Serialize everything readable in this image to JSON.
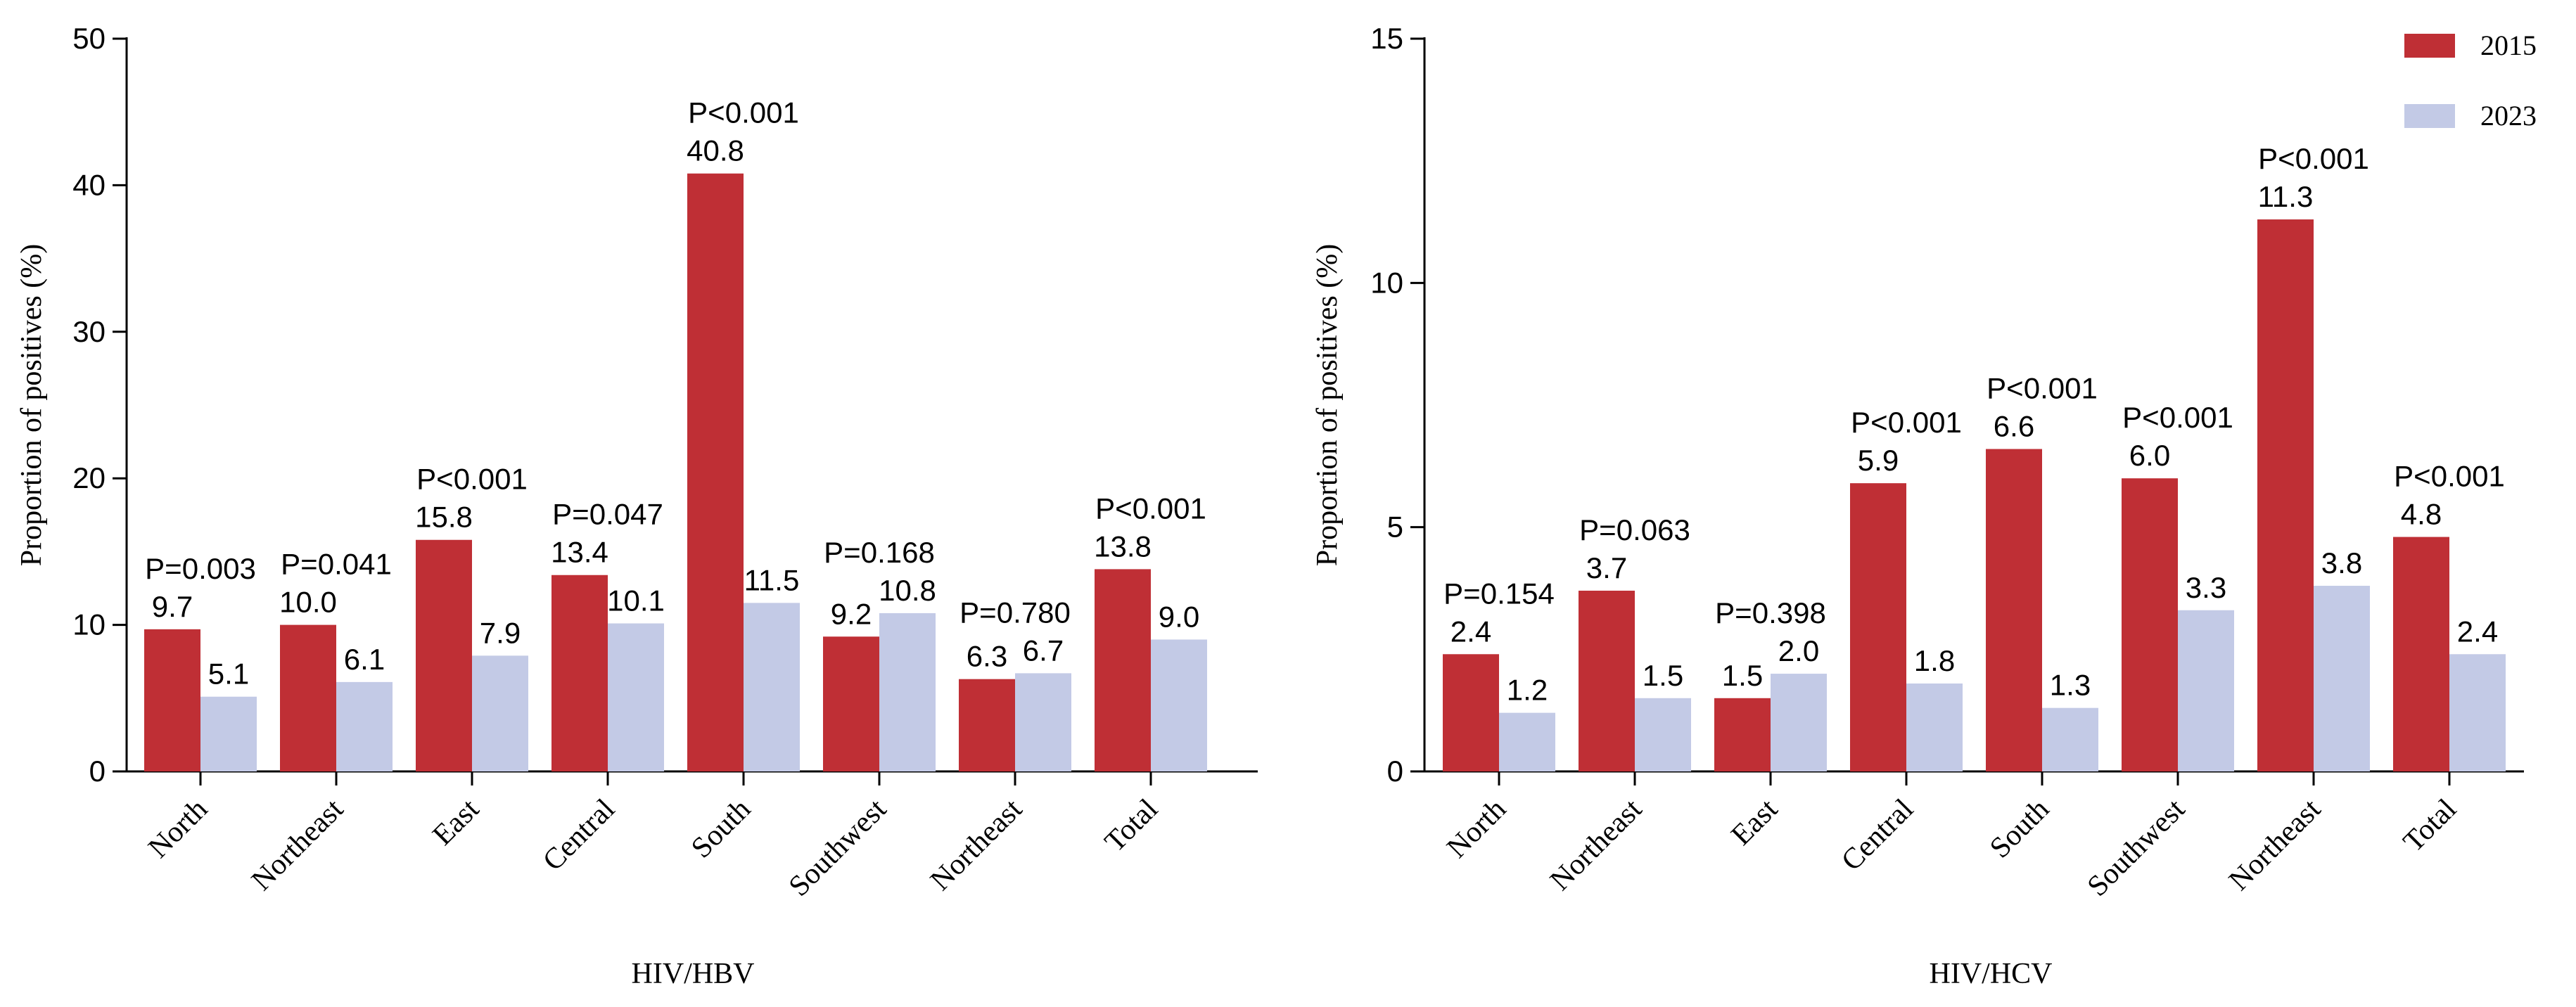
{
  "legend": {
    "placement": "top-right",
    "items": [
      {
        "label": "2015",
        "color": "#bf2f35"
      },
      {
        "label": "2023",
        "color": "#c3cae6"
      }
    ]
  },
  "chart_data": [
    {
      "type": "bar",
      "title": "",
      "xlabel": "HIV/HBV",
      "ylabel": "Proportion of positives (%)",
      "ylim": [
        0,
        50
      ],
      "yticks": [
        0,
        10,
        20,
        30,
        40,
        50
      ],
      "categories": [
        "North",
        "Northeast",
        "East",
        "Central",
        "South",
        "Southwest",
        "Northeast",
        "Total"
      ],
      "series": [
        {
          "name": "2015",
          "color": "#bf2f35",
          "values": [
            9.7,
            10.0,
            15.8,
            13.4,
            40.8,
            9.2,
            6.3,
            13.8
          ],
          "labels": [
            "9.7",
            "10.0",
            "15.8",
            "13.4",
            "40.8",
            "9.2",
            "6.3",
            "13.8"
          ]
        },
        {
          "name": "2023",
          "color": "#c3cae6",
          "values": [
            5.1,
            6.1,
            7.9,
            10.1,
            11.5,
            10.8,
            6.7,
            9.0
          ],
          "labels": [
            "5.1",
            "6.1",
            "7.9",
            "10.1",
            "11.5",
            "10.8",
            "6.7",
            "9.0"
          ]
        }
      ],
      "pvalues": [
        "P=0.003",
        "P=0.041",
        "P<0.001",
        "P=0.047",
        "P<0.001",
        "P=0.168",
        "P=0.780",
        "P<0.001"
      ]
    },
    {
      "type": "bar",
      "title": "",
      "xlabel": "HIV/HCV",
      "ylabel": "Proportion of positives (%)",
      "ylim": [
        0,
        15
      ],
      "yticks": [
        0,
        5,
        10,
        15
      ],
      "categories": [
        "North",
        "Northeast",
        "East",
        "Central",
        "South",
        "Southwest",
        "Northeast",
        "Total"
      ],
      "series": [
        {
          "name": "2015",
          "color": "#bf2f35",
          "values": [
            2.4,
            3.7,
            1.5,
            5.9,
            6.6,
            6.0,
            11.3,
            4.8
          ],
          "labels": [
            "2.4",
            "3.7",
            "1.5",
            "5.9",
            "6.6",
            "6.0",
            "11.3",
            "4.8"
          ]
        },
        {
          "name": "2023",
          "color": "#c3cae6",
          "values": [
            1.2,
            1.5,
            2.0,
            1.8,
            1.3,
            3.3,
            3.8,
            2.4
          ],
          "labels": [
            "1.2",
            "1.5",
            "2.0",
            "1.8",
            "1.3",
            "3.3",
            "3.8",
            "2.4"
          ]
        }
      ],
      "pvalues": [
        "P=0.154",
        "P=0.063",
        "P=0.398",
        "P<0.001",
        "P<0.001",
        "P<0.001",
        "P<0.001",
        "P<0.001"
      ]
    }
  ]
}
